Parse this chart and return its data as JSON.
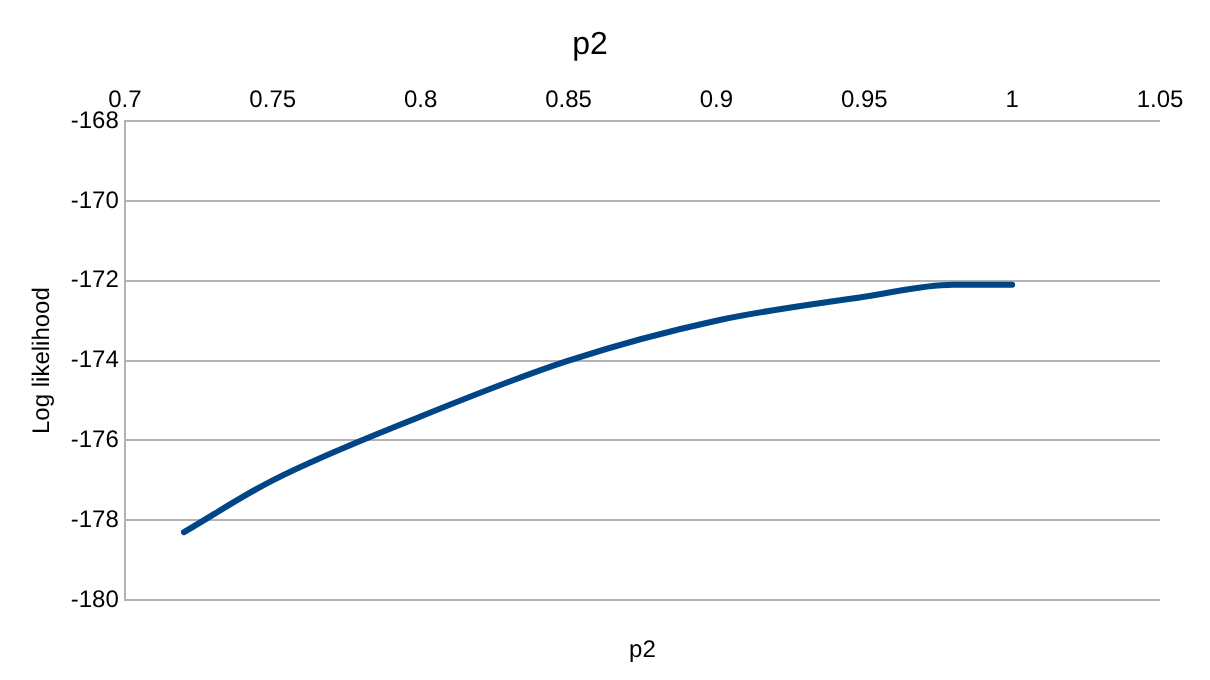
{
  "chart_data": {
    "type": "line",
    "title": "p2",
    "xlabel": "p2",
    "ylabel": "Log likelihood",
    "x": [
      0.72,
      0.75,
      0.8,
      0.85,
      0.9,
      0.95,
      0.98,
      1.0
    ],
    "series": [
      {
        "color": "#004586",
        "values": [
          -178.3,
          -177.0,
          -175.4,
          -174.0,
          -173.0,
          -172.4,
          -172.1,
          -172.1
        ]
      }
    ],
    "xlim": [
      0.7,
      1.05
    ],
    "xticks": [
      0.7,
      0.75,
      0.8,
      0.85,
      0.9,
      0.95,
      1,
      1.05
    ],
    "ylim": [
      -180,
      -168
    ],
    "yticks": [
      -180,
      -178,
      -176,
      -174,
      -172,
      -170,
      -168
    ],
    "grid": "y",
    "legend": false,
    "marker": "none",
    "line_style": "solid"
  }
}
